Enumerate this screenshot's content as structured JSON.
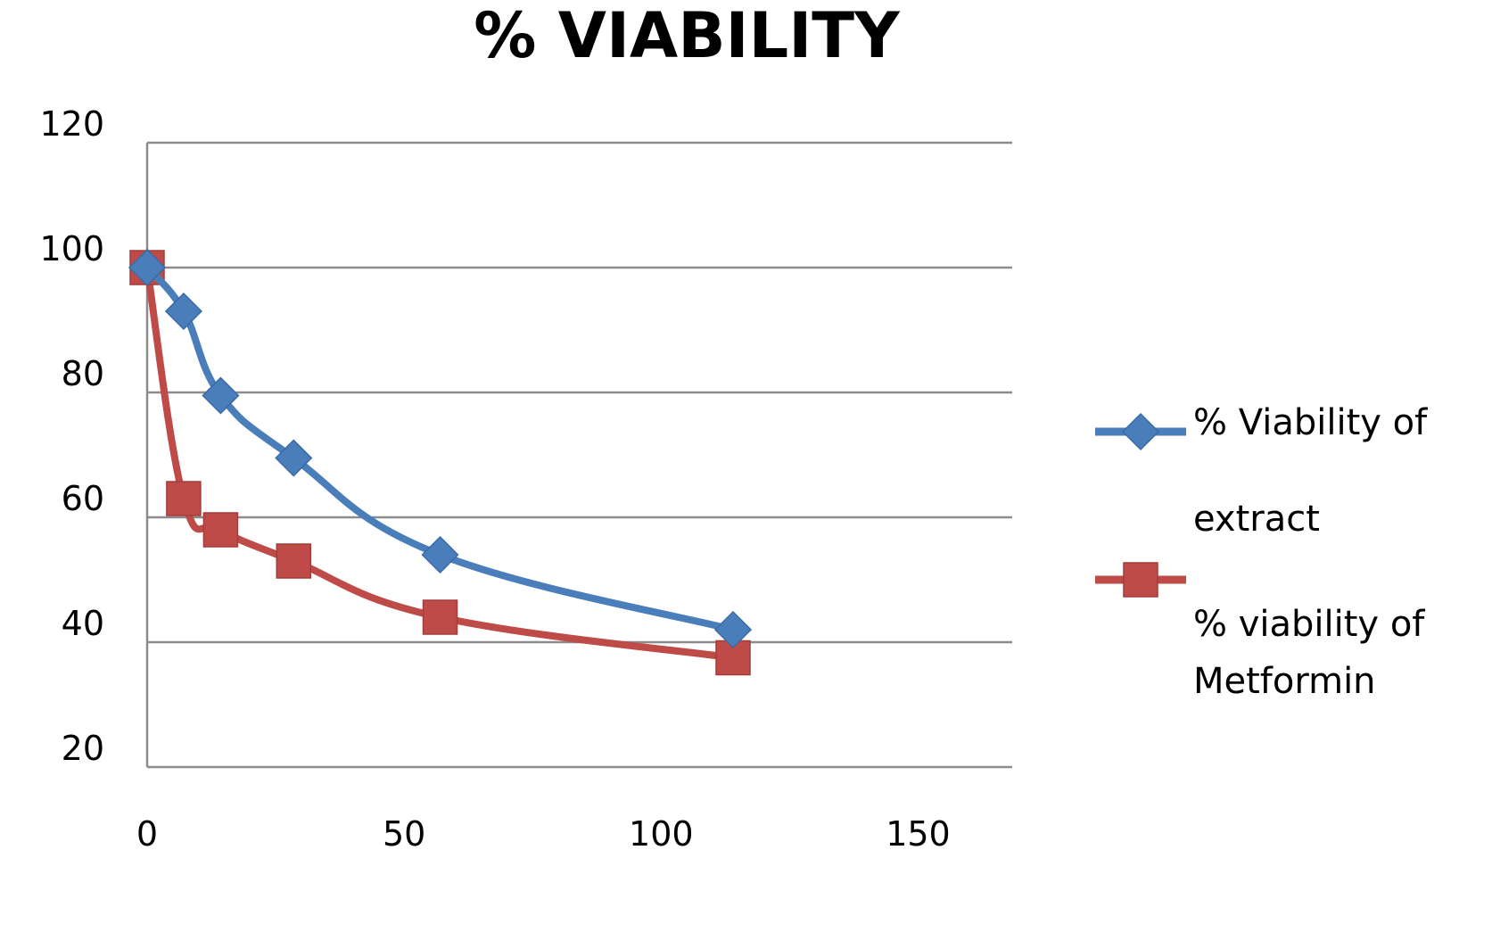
{
  "chart_data": {
    "type": "scatter",
    "title": "% VIABILITY",
    "xlim": [
      0,
      170
    ],
    "ylim": [
      20,
      120
    ],
    "x_ticks": [
      "0",
      "50",
      "100",
      "150"
    ],
    "y_ticks": [
      "20",
      "40",
      "60",
      "80",
      "100",
      "120"
    ],
    "grid": "horizontal",
    "legend_position": "right",
    "series": [
      {
        "name": "% Viability of extract",
        "name_lines": [
          "% Viability of",
          "extract"
        ],
        "color": "#4a7ebb",
        "marker": "diamond",
        "x": [
          0,
          7.1,
          14.3,
          28.5,
          57,
          114
        ],
        "y": [
          100,
          93,
          79.5,
          69.5,
          54,
          42
        ]
      },
      {
        "name": "% viability of Metformin",
        "name_lines": [
          "% viability of",
          "Metformin"
        ],
        "color": "#be4b48",
        "marker": "square",
        "x": [
          0,
          7.1,
          14.3,
          28.5,
          57,
          114
        ],
        "y": [
          100,
          63,
          58,
          53,
          44,
          37.5
        ]
      }
    ]
  }
}
